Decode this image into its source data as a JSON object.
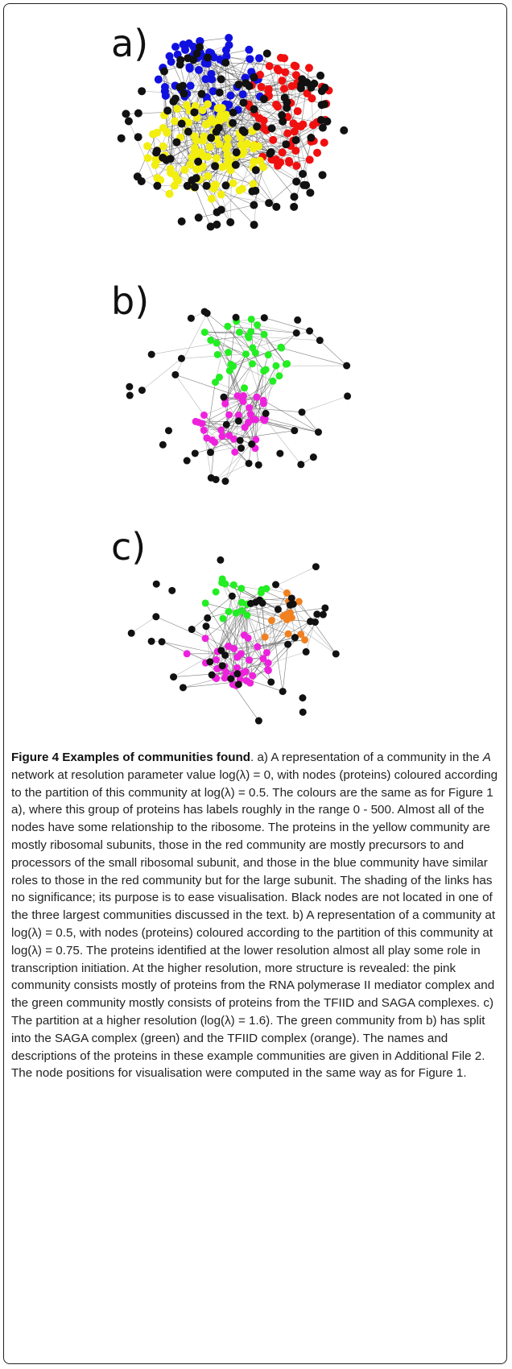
{
  "figure": {
    "panels": [
      "a)",
      "b)",
      "c)"
    ],
    "caption": {
      "title": "Figure 4 Examples of communities found",
      "parts": [
        ". a) A representation of a community in the ",
        "A",
        " network at resolution parameter value log(λ) = 0, with nodes (proteins) coloured according to the partition of this community at log(λ) = 0.5. The colours are the same as for Figure 1 a), where this group of proteins has labels roughly in the range 0 - 500. Almost all of the nodes have some relationship to the ribosome. The proteins in the yellow community are mostly ribosomal subunits, those in the red community are mostly precursors to and processors of the small ribosomal subunit, and those in the blue community have similar roles to those in the red community but for the large subunit. The shading of the links has no significance; its purpose is to ease visualisation. Black nodes are not located in one of the three largest communities discussed in the text. b) A representation of a community at log(λ) = 0.5, with nodes (proteins) coloured according to the partition of this community at log(λ) = 0.75. The proteins identified at the lower resolution almost all play some role in transcription initiation. At the higher resolution, more structure is revealed: the pink community consists mostly of proteins from the RNA polymerase II mediator complex and the green community mostly consists of proteins from the TFIID and SAGA complexes. c) The partition at a higher resolution (log(λ) = 1.6). The green community from b) has split into the SAGA complex (green) and the TFIID complex (orange). The names and descriptions of the proteins in these example communities are given in Additional File 2. The node positions for visualisation were computed in the same way as for Figure 1."
      ]
    }
  }
}
